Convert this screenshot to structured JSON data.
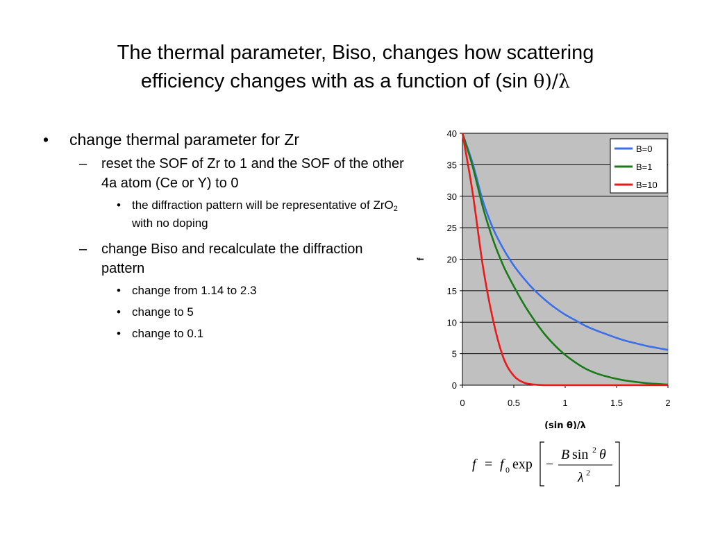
{
  "slide": {
    "title_line1": "The thermal parameter, Biso, changes how scattering",
    "title_line2_prefix": "efficiency changes with as a function of (sin ",
    "title_line2_greek": "θ)/λ",
    "bullets": {
      "main": "change thermal parameter for Zr",
      "sub1": "reset the SOF of Zr to 1 and the SOF of the other 4a atom (Ce or Y) to 0",
      "sub1_bullet_prefix": "the diffraction pattern will be representative of ZrO",
      "sub1_bullet_subscript": "2",
      "sub1_bullet_suffix": " with no doping",
      "sub2": "change Biso and recalculate the diffraction pattern",
      "sub2_bullets": [
        "change from 1.14 to 2.3",
        "change to 5",
        "change to 0.1"
      ]
    }
  },
  "chart_data": {
    "type": "line",
    "xlabel": "(sin θ)/λ",
    "ylabel": "f",
    "xlim": [
      0,
      2
    ],
    "ylim": [
      0,
      40
    ],
    "x_ticks": [
      "0",
      "0.5",
      "1",
      "1.5",
      "2"
    ],
    "y_ticks": [
      "0",
      "5",
      "10",
      "15",
      "20",
      "25",
      "30",
      "35",
      "40"
    ],
    "grid": "horizontal",
    "legend_position": "top-right",
    "background_color": "#c0c0c0",
    "x": [
      0,
      0.1,
      0.2,
      0.3,
      0.4,
      0.5,
      0.6,
      0.7,
      0.8,
      0.9,
      1.0,
      1.1,
      1.2,
      1.3,
      1.4,
      1.5,
      1.6,
      1.7,
      1.8,
      1.9,
      2.0
    ],
    "series": [
      {
        "name": "B=0",
        "color": "#3a6fe8",
        "values": [
          40.0,
          35.2,
          29.2,
          24.8,
          21.6,
          19.0,
          16.9,
          15.1,
          13.6,
          12.3,
          11.2,
          10.3,
          9.4,
          8.7,
          8.1,
          7.5,
          7.0,
          6.6,
          6.2,
          5.9,
          5.6
        ]
      },
      {
        "name": "B=1",
        "color": "#1a7a1a",
        "values": [
          40.0,
          34.7,
          28.2,
          23.0,
          18.9,
          15.7,
          12.8,
          10.3,
          8.1,
          6.3,
          4.8,
          3.6,
          2.6,
          1.9,
          1.4,
          1.0,
          0.7,
          0.5,
          0.3,
          0.2,
          0.1
        ]
      },
      {
        "name": "B=10",
        "color": "#e81a1a",
        "values": [
          40.0,
          30.5,
          18.8,
          10.2,
          4.3,
          1.5,
          0.4,
          0.1,
          0.0,
          0.0,
          0.0,
          0.0,
          0.0,
          0.0,
          0.0,
          0.0,
          0.0,
          0.0,
          0.0,
          0.0,
          0.0
        ]
      }
    ]
  },
  "formula": {
    "lhs": "f",
    "eq": "=",
    "f0_base": "f",
    "f0_sub": "0",
    "exp": "exp",
    "minus": "−",
    "num_B": "B",
    "num_sin": "sin",
    "num_sin_sup": "2",
    "num_theta": "θ",
    "den_lambda": "λ",
    "den_sup": "2"
  }
}
